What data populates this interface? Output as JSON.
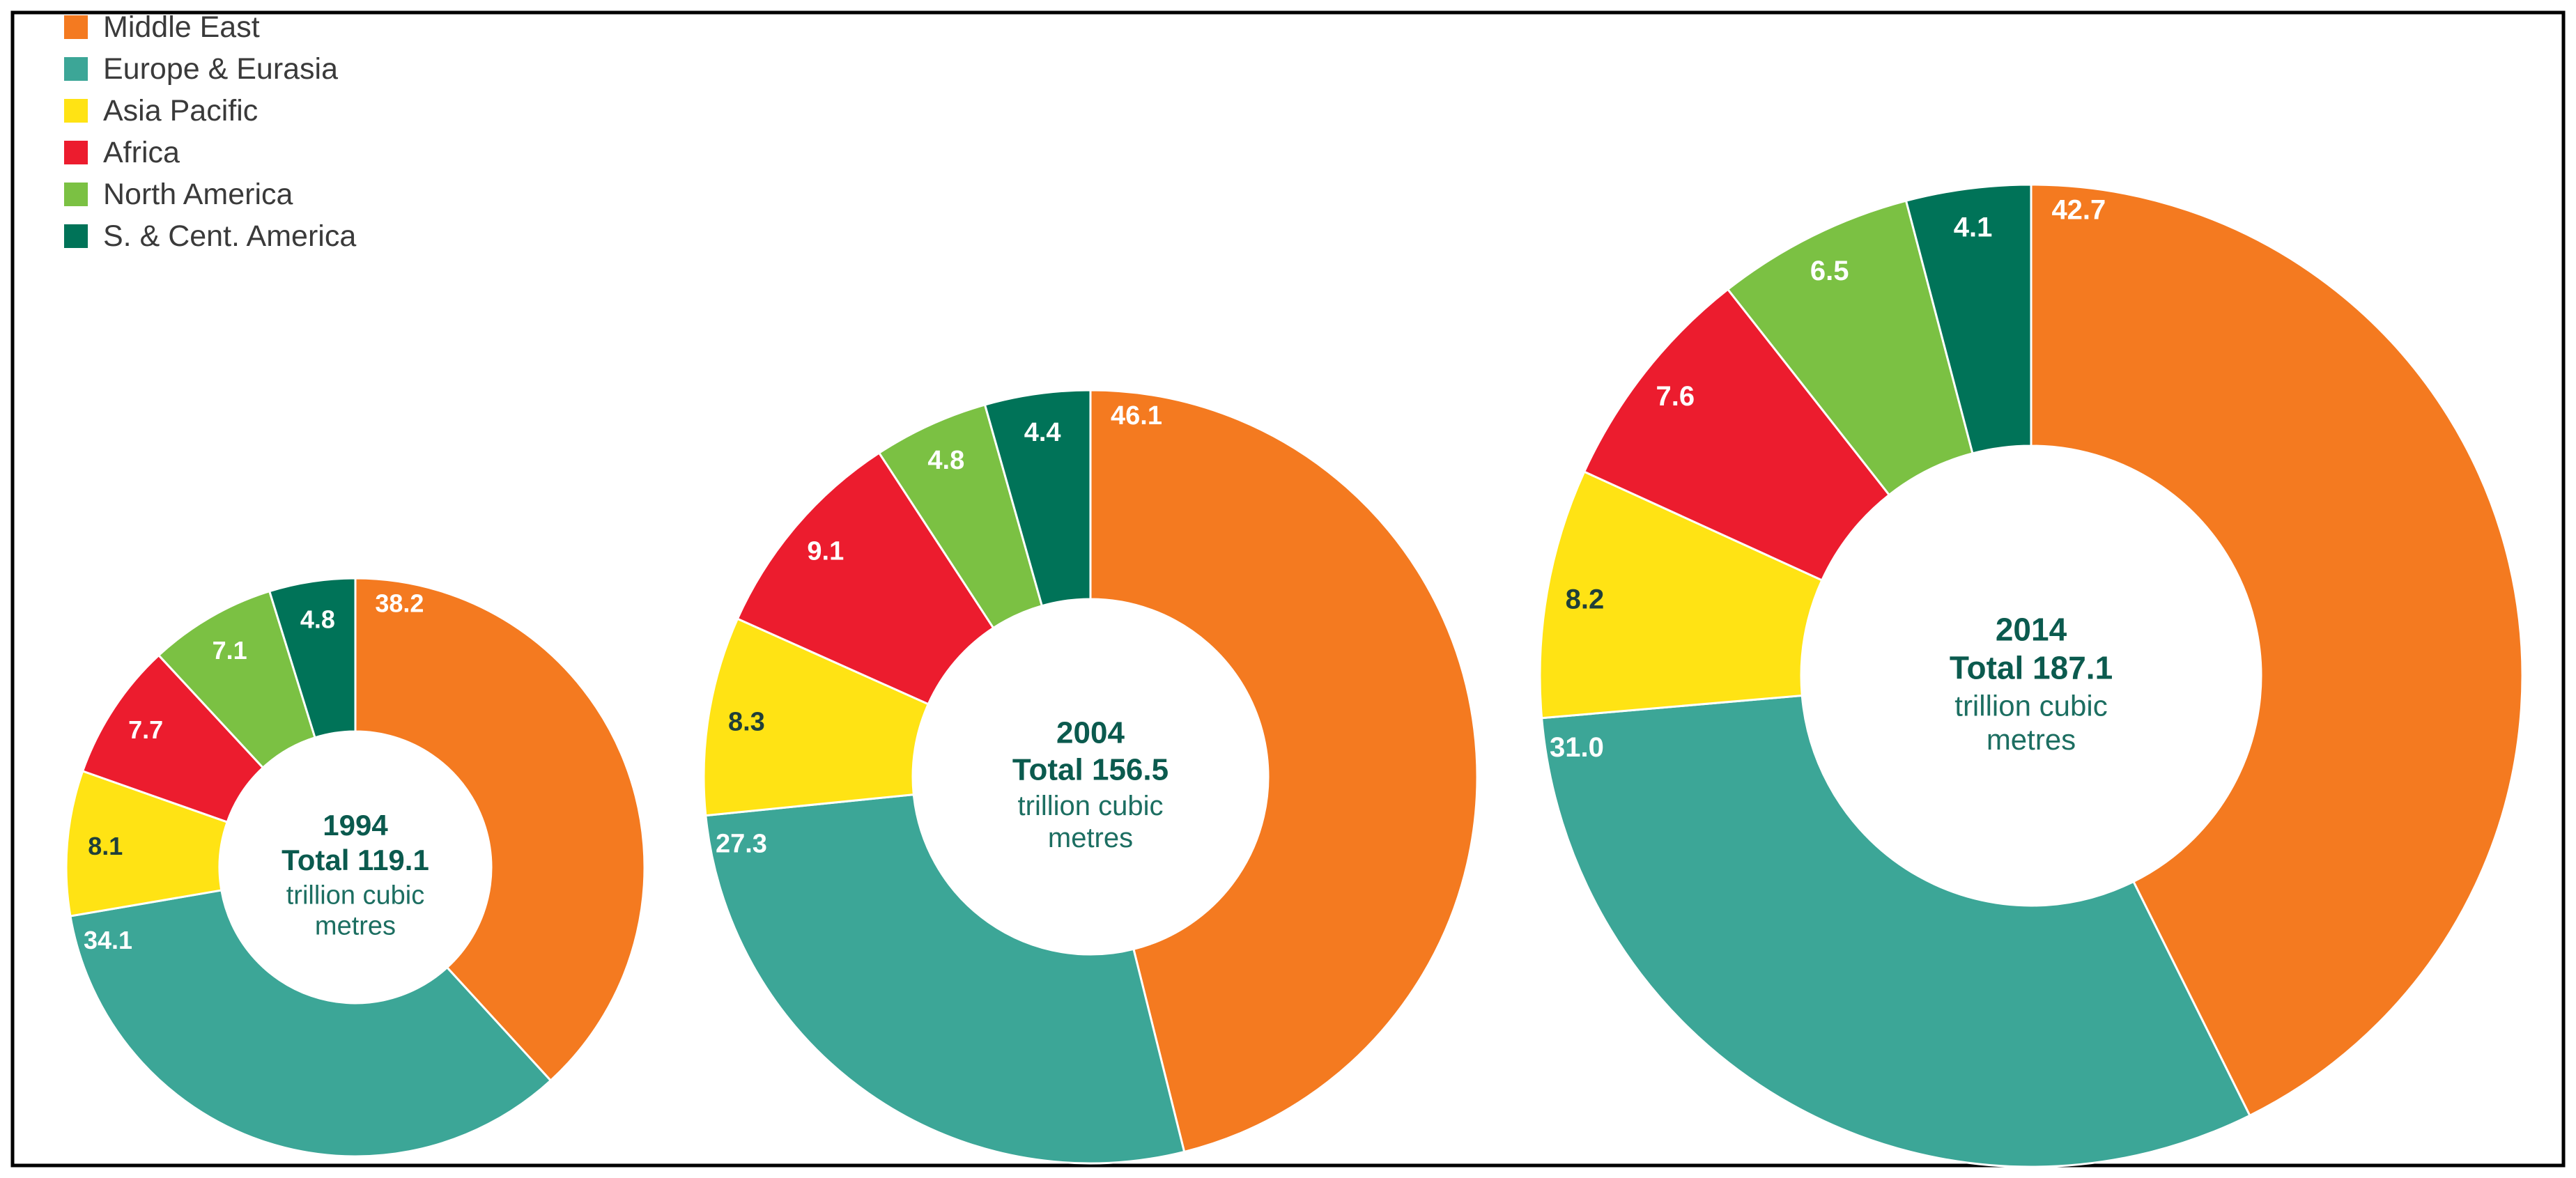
{
  "chart_data": {
    "type": "pie",
    "subtype": "donut",
    "legend": {
      "placement": "top-left",
      "items": [
        {
          "name": "Middle East",
          "color": "#f47a20"
        },
        {
          "name": "Europe & Eurasia",
          "color": "#3ca697"
        },
        {
          "name": "Asia Pacific",
          "color": "#ffe314"
        },
        {
          "name": "Africa",
          "color": "#ec1c2e"
        },
        {
          "name": "North America",
          "color": "#7bc143"
        },
        {
          "name": "S. & Cent. America",
          "color": "#007358"
        }
      ]
    },
    "charts": [
      {
        "year": "1994",
        "total_label": "Total 119.1",
        "unit_line1": "trillion cubic",
        "unit_line2": "metres",
        "total": 119.1,
        "values": [
          38.2,
          34.1,
          8.1,
          7.7,
          7.1,
          4.8
        ],
        "labels": [
          "38.2",
          "34.1",
          "8.1",
          "7.7",
          "7.1",
          "4.8"
        ]
      },
      {
        "year": "2004",
        "total_label": "Total 156.5",
        "unit_line1": "trillion cubic",
        "unit_line2": "metres",
        "total": 156.5,
        "values": [
          46.1,
          27.3,
          8.3,
          9.1,
          4.8,
          4.4
        ],
        "labels": [
          "46.1",
          "27.3",
          "8.3",
          "9.1",
          "4.8",
          "4.4"
        ]
      },
      {
        "year": "2014",
        "total_label": "Total 187.1",
        "unit_line1": "trillion cubic",
        "unit_line2": "metres",
        "total": 187.1,
        "values": [
          42.7,
          31.0,
          8.2,
          7.6,
          6.5,
          4.1
        ],
        "labels": [
          "42.7",
          "31.0",
          "8.2",
          "7.6",
          "6.5",
          "4.1"
        ]
      }
    ]
  }
}
